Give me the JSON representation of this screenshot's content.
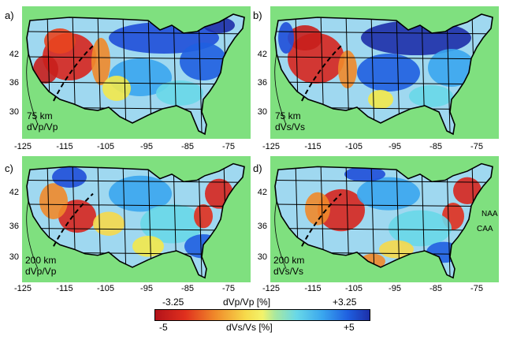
{
  "panels": [
    {
      "id": "a",
      "label": "a)",
      "depth": "75 km",
      "quantity": "dVp/Vp"
    },
    {
      "id": "b",
      "label": "b)",
      "depth": "75 km",
      "quantity": "dVs/Vs"
    },
    {
      "id": "c",
      "label": "c)",
      "depth": "200 km",
      "quantity": "dVp/Vp"
    },
    {
      "id": "d",
      "label": "d)",
      "depth": "200 km",
      "quantity": "dVs/Vs"
    }
  ],
  "axes": {
    "lon_ticks": [
      "-125",
      "-115",
      "-105",
      "-95",
      "-85",
      "-75"
    ],
    "lat_ticks": [
      "42",
      "36",
      "30"
    ]
  },
  "annotations": {
    "naa": "NAA",
    "caa": "CAA"
  },
  "colorbar": {
    "p_min": "-3.25",
    "p_label": "dVp/Vp [%]",
    "p_max": "+3.25",
    "s_min": "-5",
    "s_label": "dVs/Vs [%]",
    "s_max": "+5"
  },
  "colors": {
    "background_green": "#7fe07f",
    "slow_red": "#d7261e",
    "neutral_yellow": "#f3e94a",
    "fast_blue": "#1f4fd8"
  }
}
